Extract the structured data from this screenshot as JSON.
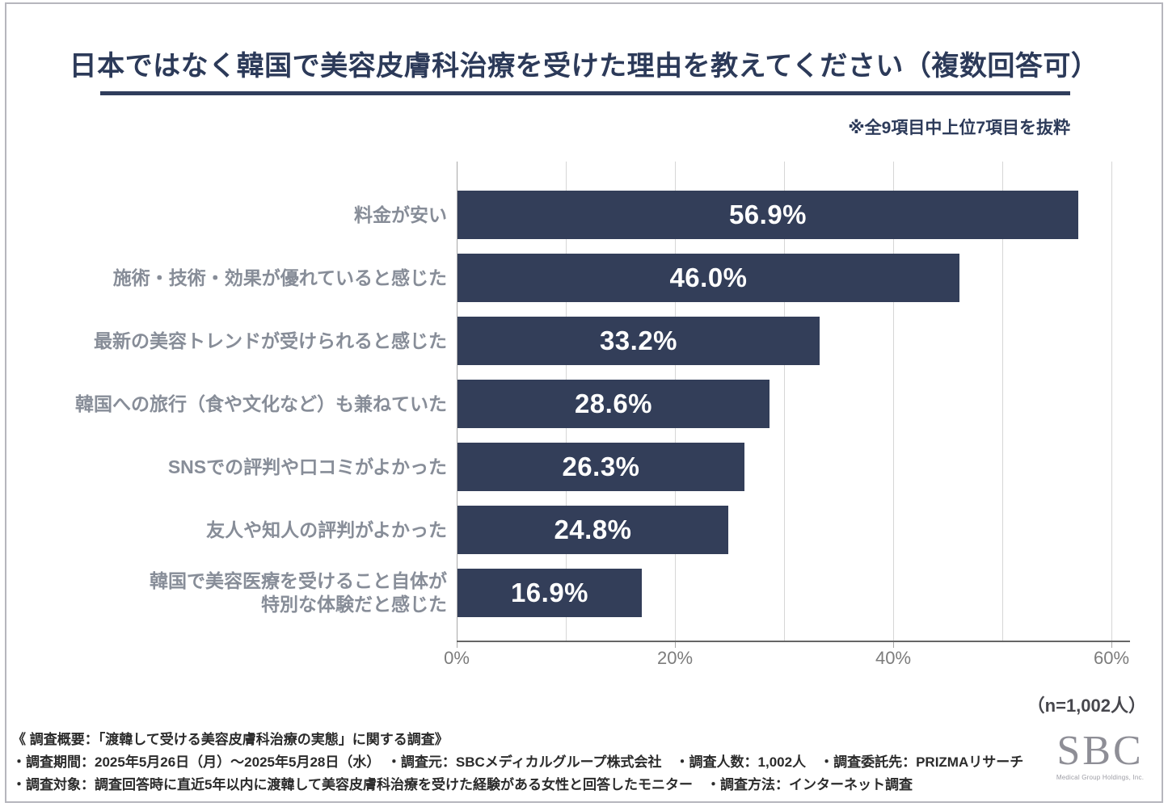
{
  "header": {
    "title": "日本ではなく韓国で美容皮膚科治療を受けた理由を教えてください（複数回答可）",
    "note": "※全9項目中上位7項目を抜粋"
  },
  "chart_data": {
    "type": "bar",
    "orientation": "horizontal",
    "title": "日本ではなく韓国で美容皮膚科治療を受けた理由を教えてください（複数回答可）",
    "categories": [
      "料金が安い",
      "施術・技術・効果が優れていると感じた",
      "最新の美容トレンドが受けられると感じた",
      "韓国への旅行（食や文化など）も兼ねていた",
      "SNSでの評判や口コミがよかった",
      "友人や知人の評判がよかった",
      "韓国で美容医療を受けること自体が\n特別な体験だと感じた"
    ],
    "values": [
      56.9,
      46.0,
      33.2,
      28.6,
      26.3,
      24.8,
      16.9
    ],
    "value_labels": [
      "56.9%",
      "46.0%",
      "33.2%",
      "28.6%",
      "26.3%",
      "24.8%",
      "16.9%"
    ],
    "x_tick_labels": [
      "0%",
      "20%",
      "40%",
      "60%"
    ],
    "x_tick_positions": [
      0,
      20,
      40,
      60
    ],
    "xlim": [
      0,
      60
    ],
    "gridline_step_pct": 10,
    "legend": "none",
    "colors": {
      "bar": "#333E59",
      "value_text": "#FFFFFF",
      "category_text": "#878D98",
      "axis_text": "#7C7C7C",
      "gridline": "#D6D6D6",
      "axis_line": "#666666",
      "title_navy": "#2C3A59"
    }
  },
  "annotations": {
    "sample_size": "（n=1,002人）"
  },
  "footer": {
    "line1": "《 調査概要：「渡韓して受ける美容皮膚科治療の実態」に関する調査》",
    "line2": "・調査期間：2025年5月26日（月）～2025年5月28日（水）　・調査元：SBCメディカルグループ株式会社　・調査人数：1,002人　・調査委託先：PRIZMAリサーチ",
    "line3": "・調査対象：調査回答時に直近5年以内に渡韓して美容皮膚科治療を受けた経験がある女性と回答したモニター　・調査方法：インターネット調査"
  },
  "logo": {
    "text": "SBC",
    "subtext": "Medical Group Holdings, Inc."
  }
}
